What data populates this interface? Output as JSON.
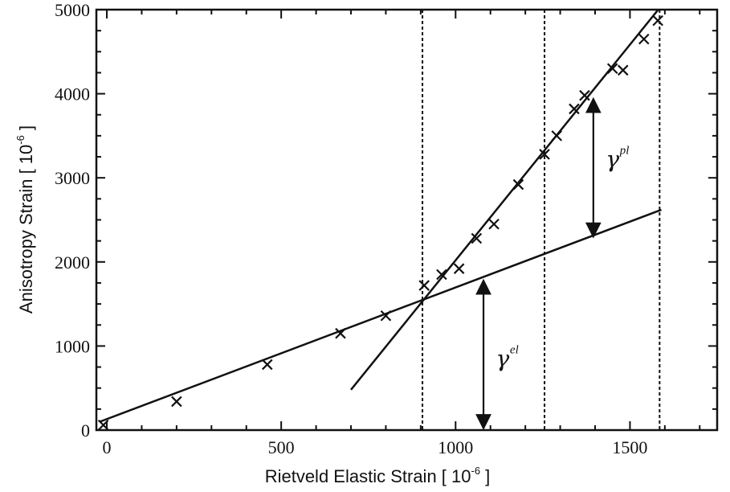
{
  "chart_data": {
    "type": "scatter",
    "xlabel": "Rietveld Elastic Strain [ 10",
    "xlabel_exp": "-6",
    "xlabel_end": " ]",
    "ylabel": "Anisotropy Strain [ 10",
    "ylabel_exp": "-6",
    "ylabel_end": " ]",
    "xlim": [
      -30,
      1750
    ],
    "ylim": [
      0,
      5000
    ],
    "x_ticks": [
      0,
      500,
      1000,
      1500
    ],
    "y_ticks": [
      0,
      1000,
      2000,
      3000,
      4000,
      5000
    ],
    "grid": false,
    "points": {
      "marker": "x",
      "x": [
        -10,
        200,
        460,
        670,
        800,
        910,
        960,
        1010,
        1060,
        1110,
        1180,
        1255,
        1290,
        1340,
        1370,
        1450,
        1480,
        1540,
        1580
      ],
      "y": [
        60,
        340,
        780,
        1150,
        1360,
        1720,
        1850,
        1920,
        2280,
        2450,
        2920,
        3280,
        3500,
        3820,
        3980,
        4300,
        4280,
        4650,
        4870
      ]
    },
    "elastic_line": {
      "x": [
        -20,
        1590
      ],
      "y": [
        100,
        2620
      ]
    },
    "plastic_line": {
      "x": [
        700,
        1620
      ],
      "y": [
        480,
        5200
      ]
    },
    "vlines": [
      905,
      1255,
      1585
    ],
    "annotations": [
      {
        "label": "γ",
        "sup": "el",
        "x": 1080,
        "y_from": 0,
        "y_to": 1800,
        "label_x": 1135,
        "label_y": 760
      },
      {
        "label": "γ",
        "sup": "pl",
        "x": 1395,
        "y_from": 2280,
        "y_to": 3960,
        "label_x": 1450,
        "label_y": 3130
      }
    ]
  }
}
